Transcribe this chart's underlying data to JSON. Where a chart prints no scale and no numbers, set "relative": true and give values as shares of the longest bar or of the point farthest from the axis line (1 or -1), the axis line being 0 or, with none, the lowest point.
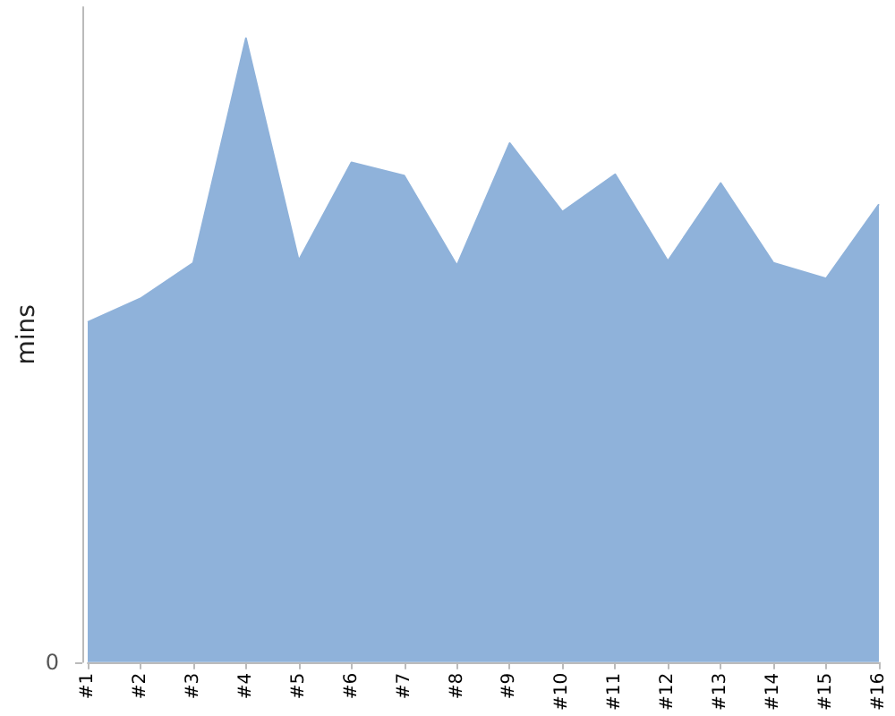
{
  "chart_data": {
    "type": "area",
    "ylabel": "mins",
    "relative": true,
    "annotations": [
      "0"
    ],
    "categories": [
      "#1",
      "#2",
      "#3",
      "#4",
      "#5",
      "#6",
      "#7",
      "#8",
      "#9",
      "#10",
      "#11",
      "#12",
      "#13",
      "#14",
      "#15",
      "#16"
    ],
    "values": [
      0.545,
      0.583,
      0.64,
      1,
      0.644,
      0.801,
      0.78,
      0.636,
      0.832,
      0.722,
      0.782,
      0.643,
      0.768,
      0.64,
      0.615,
      0.734
    ],
    "color": "#8fb2da",
    "grid": false
  }
}
